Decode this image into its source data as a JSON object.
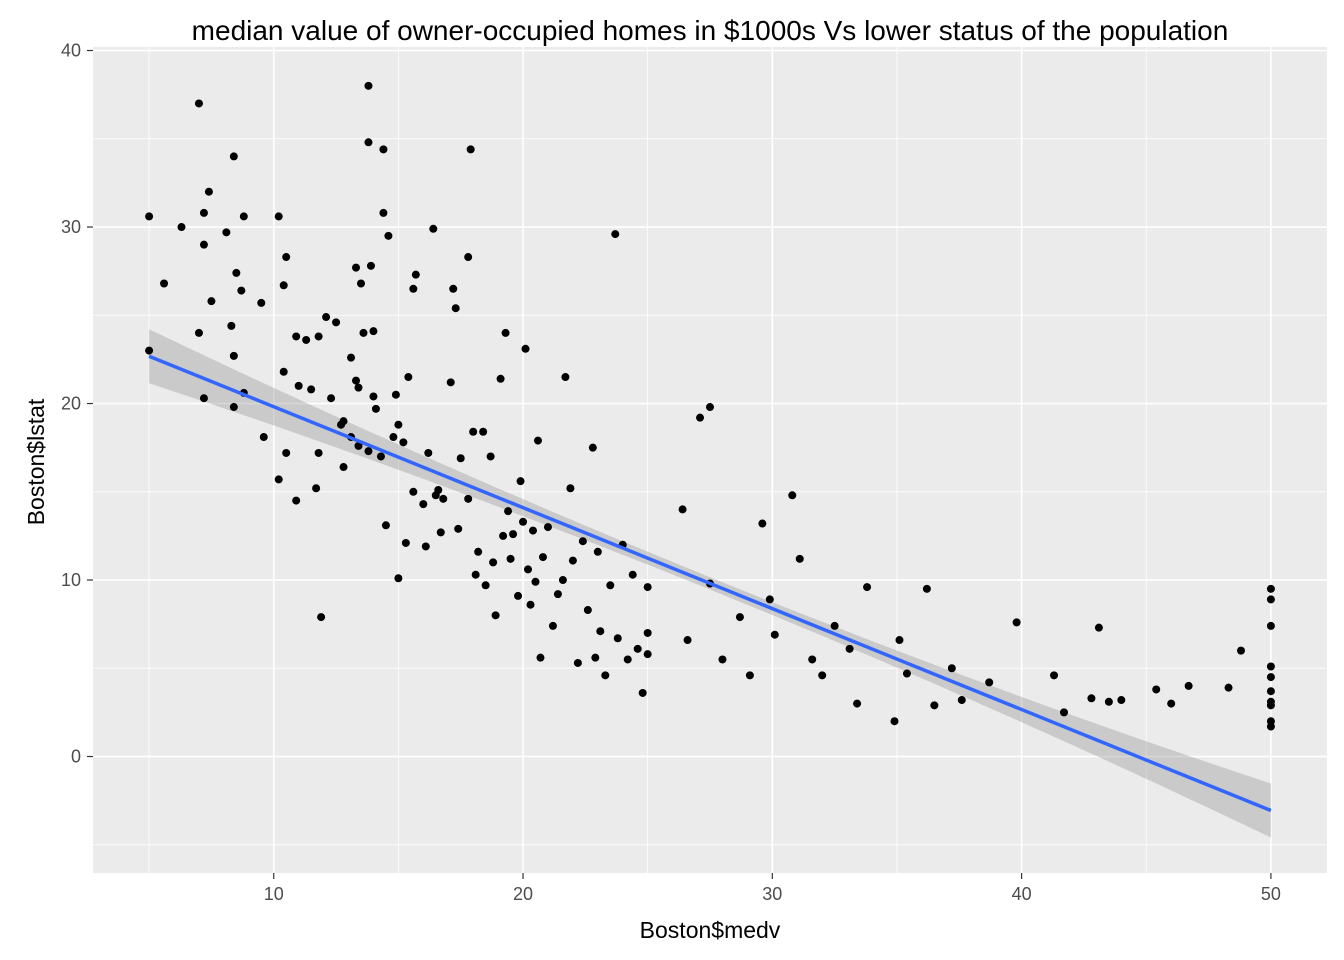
{
  "chart_data": {
    "type": "scatter",
    "title": "median value of owner-occupied homes in $1000s Vs lower status of the population",
    "xlabel": "Boston$medv",
    "ylabel": "Boston$lstat",
    "xlim": [
      2.75,
      52.25
    ],
    "ylim": [
      -6.6,
      40.2
    ],
    "xticks": [
      10,
      20,
      30,
      40,
      50
    ],
    "yticks": [
      0,
      10,
      20,
      30,
      40
    ],
    "grid": true,
    "colors": {
      "panel": "#ebebeb",
      "grid_major": "#ffffff",
      "points": "#000000",
      "fit_line": "#3366ff",
      "confidence_band": "#999999"
    },
    "fit": {
      "method": "linear",
      "x": [
        5,
        50
      ],
      "y": [
        22.68,
        -3.06
      ],
      "band_halfwidth": [
        0.45,
        0.45
      ]
    },
    "points": [
      [
        5.0,
        23.0
      ],
      [
        5.0,
        30.6
      ],
      [
        5.6,
        26.8
      ],
      [
        6.3,
        30.0
      ],
      [
        7.0,
        37.0
      ],
      [
        7.0,
        24.0
      ],
      [
        7.2,
        30.8
      ],
      [
        7.2,
        20.3
      ],
      [
        7.2,
        29.0
      ],
      [
        7.4,
        32.0
      ],
      [
        7.5,
        25.8
      ],
      [
        8.1,
        29.7
      ],
      [
        8.3,
        24.4
      ],
      [
        8.4,
        34.0
      ],
      [
        8.4,
        22.7
      ],
      [
        8.5,
        27.4
      ],
      [
        8.4,
        19.8
      ],
      [
        8.7,
        26.4
      ],
      [
        8.8,
        30.6
      ],
      [
        8.8,
        20.6
      ],
      [
        9.5,
        25.7
      ],
      [
        9.6,
        18.1
      ],
      [
        10.2,
        30.6
      ],
      [
        10.2,
        15.7
      ],
      [
        10.4,
        26.7
      ],
      [
        10.4,
        21.8
      ],
      [
        10.5,
        28.3
      ],
      [
        10.5,
        17.2
      ],
      [
        10.9,
        23.8
      ],
      [
        10.9,
        14.5
      ],
      [
        11.0,
        21.0
      ],
      [
        11.3,
        23.6
      ],
      [
        11.5,
        20.8
      ],
      [
        11.7,
        15.2
      ],
      [
        11.8,
        17.2
      ],
      [
        11.8,
        23.8
      ],
      [
        11.9,
        7.9
      ],
      [
        12.1,
        24.9
      ],
      [
        12.3,
        20.3
      ],
      [
        12.5,
        24.6
      ],
      [
        12.7,
        18.8
      ],
      [
        12.8,
        16.4
      ],
      [
        12.8,
        19.0
      ],
      [
        13.1,
        22.6
      ],
      [
        13.1,
        18.1
      ],
      [
        13.3,
        21.3
      ],
      [
        13.3,
        27.7
      ],
      [
        13.4,
        17.6
      ],
      [
        13.4,
        20.9
      ],
      [
        13.5,
        26.8
      ],
      [
        13.6,
        24.0
      ],
      [
        13.8,
        17.3
      ],
      [
        13.8,
        38.0
      ],
      [
        13.8,
        34.8
      ],
      [
        13.9,
        27.8
      ],
      [
        14.0,
        24.1
      ],
      [
        14.0,
        20.4
      ],
      [
        14.1,
        19.7
      ],
      [
        14.3,
        17.0
      ],
      [
        14.4,
        34.4
      ],
      [
        14.4,
        30.8
      ],
      [
        14.5,
        13.1
      ],
      [
        14.6,
        29.5
      ],
      [
        14.8,
        18.1
      ],
      [
        14.9,
        20.5
      ],
      [
        15.0,
        10.1
      ],
      [
        15.0,
        18.8
      ],
      [
        15.2,
        17.8
      ],
      [
        15.3,
        12.1
      ],
      [
        15.4,
        21.5
      ],
      [
        15.6,
        15.0
      ],
      [
        15.6,
        26.5
      ],
      [
        15.7,
        27.3
      ],
      [
        16.0,
        14.3
      ],
      [
        16.1,
        11.9
      ],
      [
        16.2,
        17.2
      ],
      [
        16.4,
        29.9
      ],
      [
        16.5,
        14.8
      ],
      [
        16.6,
        15.1
      ],
      [
        16.7,
        12.7
      ],
      [
        16.8,
        14.6
      ],
      [
        17.1,
        21.2
      ],
      [
        17.2,
        26.5
      ],
      [
        17.3,
        25.4
      ],
      [
        17.4,
        12.9
      ],
      [
        17.5,
        16.9
      ],
      [
        17.8,
        28.3
      ],
      [
        17.8,
        14.6
      ],
      [
        17.9,
        34.4
      ],
      [
        18.0,
        18.4
      ],
      [
        18.1,
        10.3
      ],
      [
        18.2,
        11.6
      ],
      [
        18.4,
        18.4
      ],
      [
        18.5,
        9.7
      ],
      [
        18.7,
        17.0
      ],
      [
        18.8,
        11.0
      ],
      [
        18.9,
        8.0
      ],
      [
        19.1,
        21.4
      ],
      [
        19.2,
        12.5
      ],
      [
        19.3,
        24.0
      ],
      [
        19.4,
        13.9
      ],
      [
        19.5,
        11.2
      ],
      [
        19.6,
        12.6
      ],
      [
        19.8,
        9.1
      ],
      [
        19.9,
        15.6
      ],
      [
        20.0,
        13.3
      ],
      [
        20.1,
        23.1
      ],
      [
        20.2,
        10.6
      ],
      [
        20.3,
        8.6
      ],
      [
        20.4,
        12.8
      ],
      [
        20.5,
        9.9
      ],
      [
        20.6,
        17.9
      ],
      [
        20.7,
        5.6
      ],
      [
        20.8,
        11.3
      ],
      [
        21.0,
        13.0
      ],
      [
        21.2,
        7.4
      ],
      [
        21.4,
        9.2
      ],
      [
        21.6,
        10.0
      ],
      [
        21.7,
        21.5
      ],
      [
        21.9,
        15.2
      ],
      [
        22.0,
        11.1
      ],
      [
        22.2,
        5.3
      ],
      [
        22.4,
        12.2
      ],
      [
        22.6,
        8.3
      ],
      [
        22.8,
        17.5
      ],
      [
        22.9,
        5.6
      ],
      [
        23.0,
        11.6
      ],
      [
        23.1,
        7.1
      ],
      [
        23.3,
        4.6
      ],
      [
        23.5,
        9.7
      ],
      [
        23.7,
        29.6
      ],
      [
        23.8,
        6.7
      ],
      [
        24.0,
        12.0
      ],
      [
        24.2,
        5.5
      ],
      [
        24.4,
        10.3
      ],
      [
        24.6,
        6.1
      ],
      [
        24.8,
        3.6
      ],
      [
        25.0,
        7.0
      ],
      [
        25.0,
        9.6
      ],
      [
        25.0,
        5.8
      ],
      [
        26.4,
        14.0
      ],
      [
        26.6,
        6.6
      ],
      [
        27.1,
        19.2
      ],
      [
        27.5,
        19.8
      ],
      [
        27.5,
        9.8
      ],
      [
        28.0,
        5.5
      ],
      [
        28.7,
        7.9
      ],
      [
        29.1,
        4.6
      ],
      [
        29.6,
        13.2
      ],
      [
        29.9,
        8.9
      ],
      [
        30.1,
        6.9
      ],
      [
        30.8,
        14.8
      ],
      [
        31.1,
        11.2
      ],
      [
        31.6,
        5.5
      ],
      [
        32.0,
        4.6
      ],
      [
        32.5,
        7.4
      ],
      [
        33.1,
        6.1
      ],
      [
        33.4,
        3.0
      ],
      [
        33.8,
        9.6
      ],
      [
        34.9,
        2.0
      ],
      [
        35.1,
        6.6
      ],
      [
        35.4,
        4.7
      ],
      [
        36.2,
        9.5
      ],
      [
        36.5,
        2.9
      ],
      [
        37.2,
        5.0
      ],
      [
        37.6,
        3.2
      ],
      [
        38.7,
        4.2
      ],
      [
        39.8,
        7.6
      ],
      [
        41.3,
        4.6
      ],
      [
        41.7,
        2.5
      ],
      [
        42.8,
        3.3
      ],
      [
        43.1,
        7.3
      ],
      [
        43.5,
        3.1
      ],
      [
        44.0,
        3.2
      ],
      [
        45.4,
        3.8
      ],
      [
        46.0,
        3.0
      ],
      [
        46.7,
        4.0
      ],
      [
        48.3,
        3.9
      ],
      [
        48.8,
        6.0
      ],
      [
        50.0,
        9.5
      ],
      [
        50.0,
        8.9
      ],
      [
        50.0,
        7.4
      ],
      [
        50.0,
        5.1
      ],
      [
        50.0,
        4.5
      ],
      [
        50.0,
        3.7
      ],
      [
        50.0,
        3.1
      ],
      [
        50.0,
        2.9
      ],
      [
        50.0,
        2.0
      ],
      [
        50.0,
        1.7
      ]
    ]
  }
}
